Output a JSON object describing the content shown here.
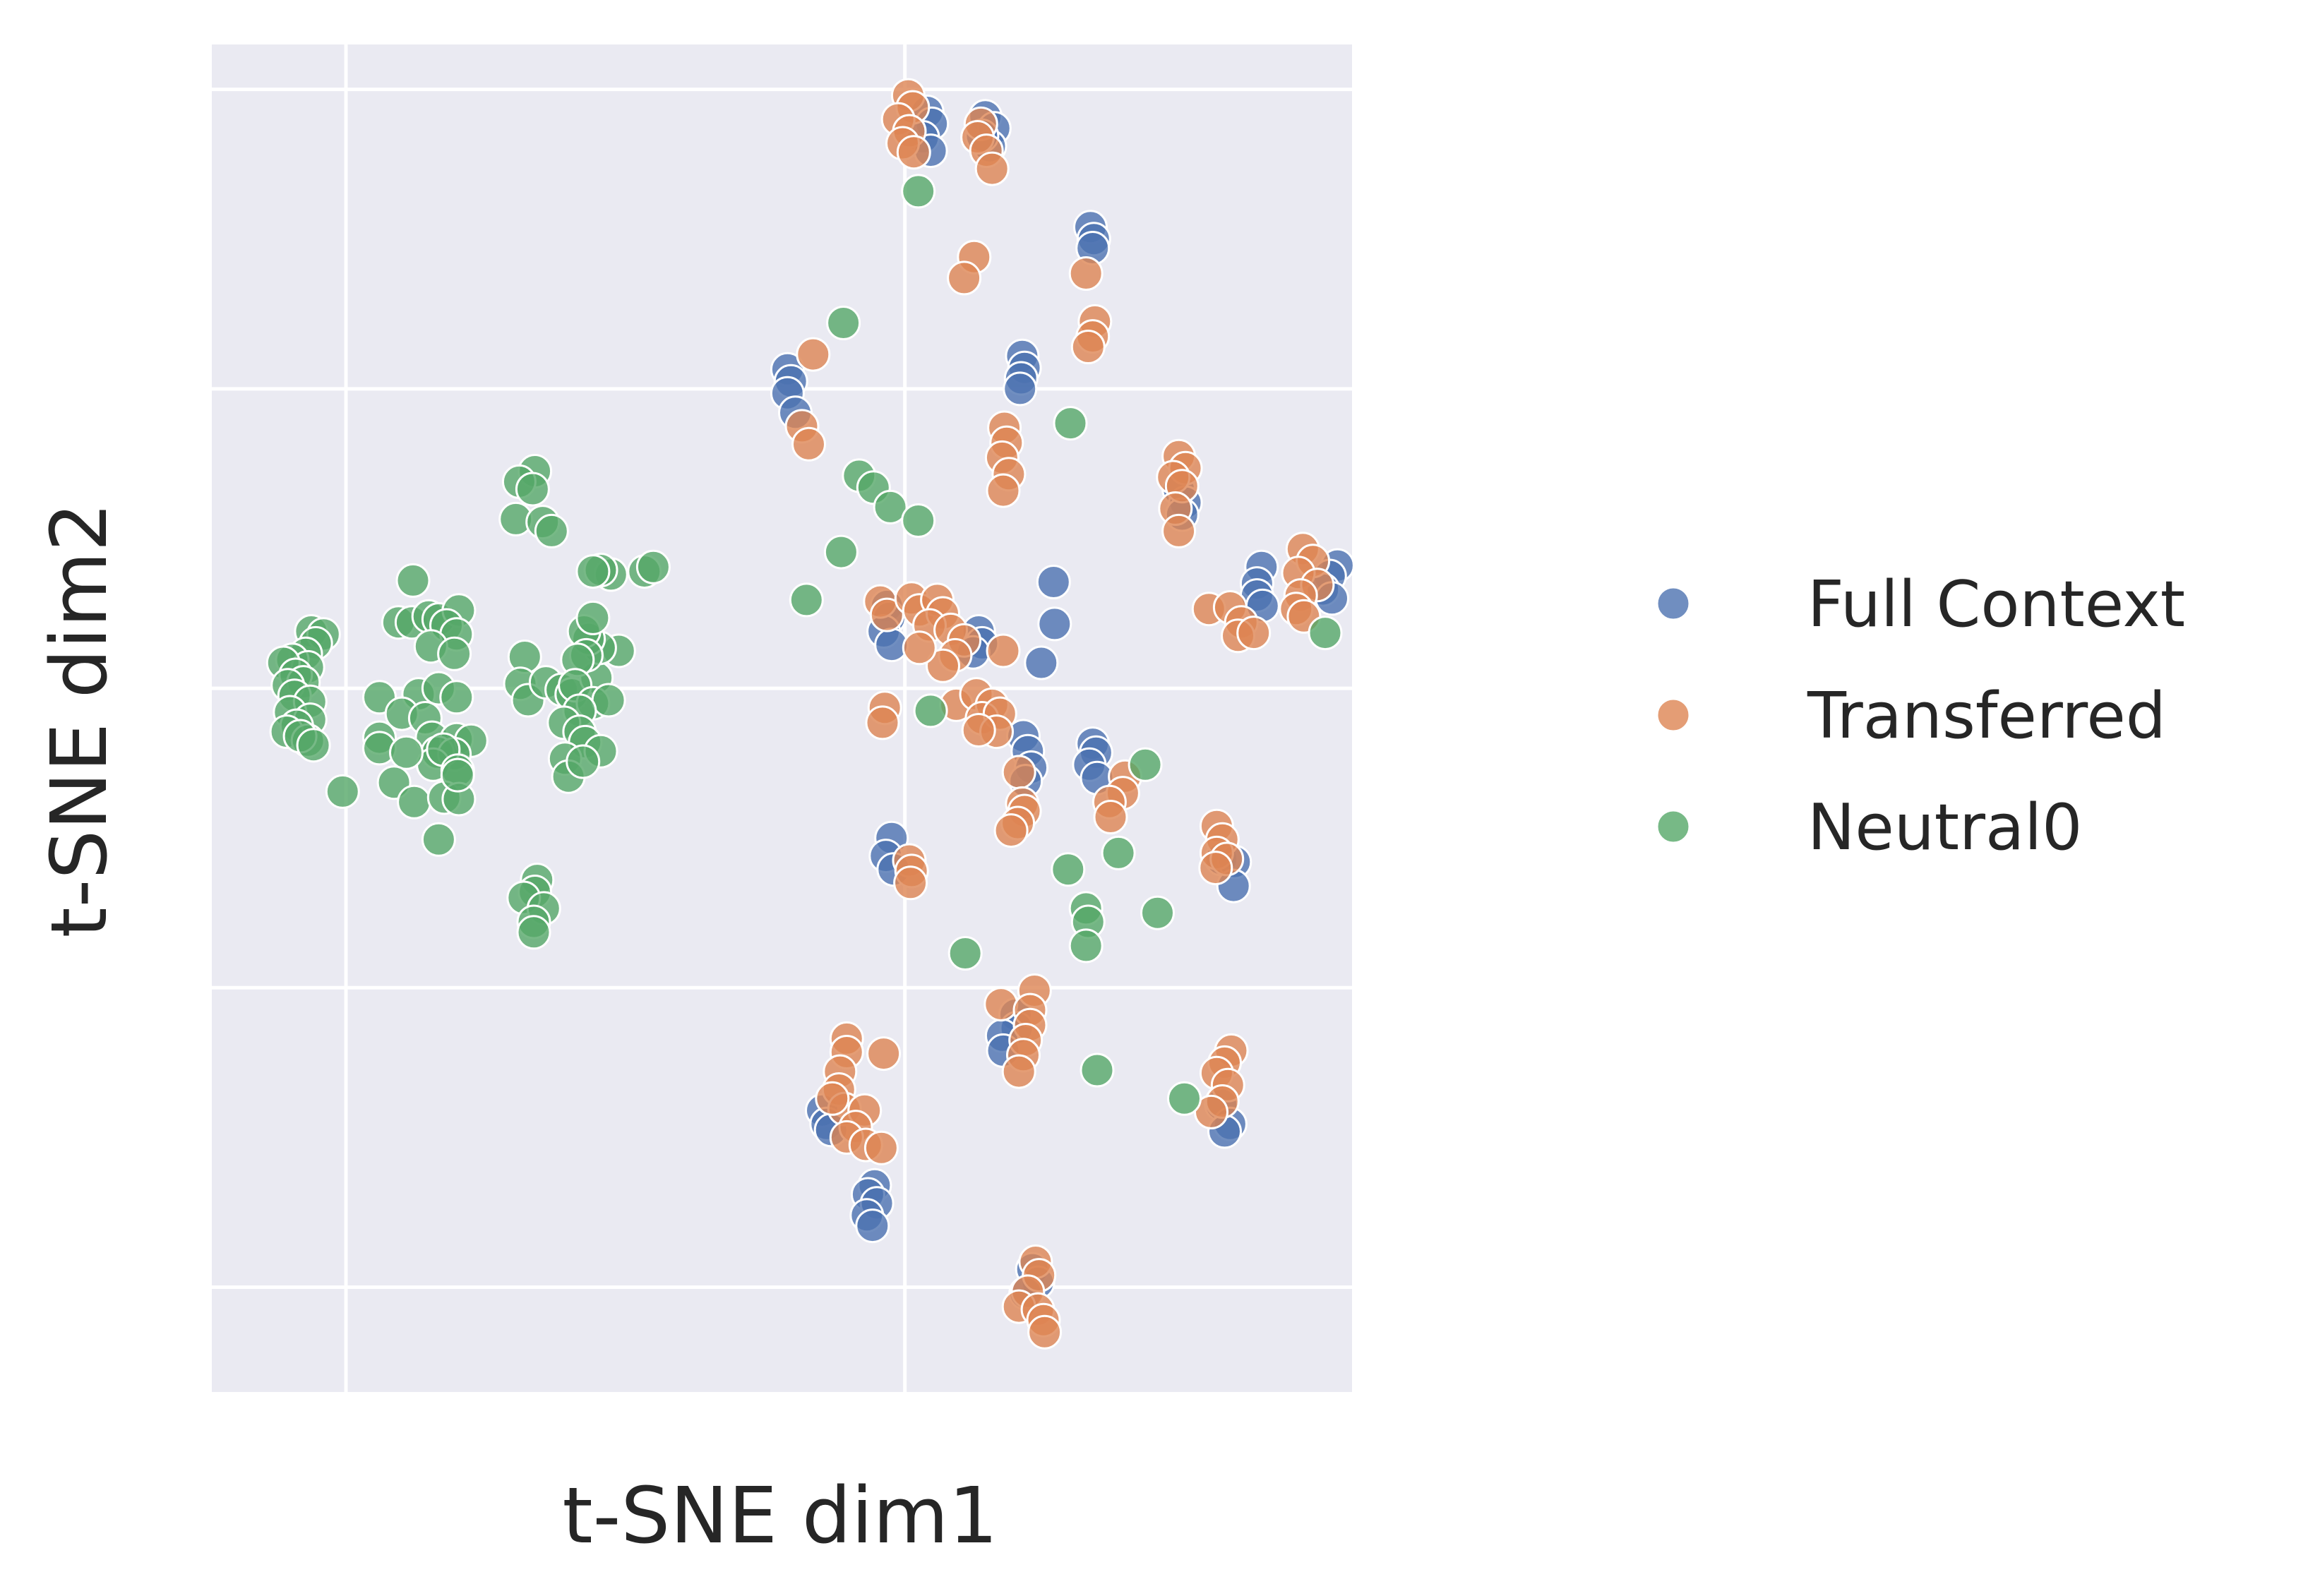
{
  "chart_data": {
    "type": "scatter",
    "title": "",
    "xlabel": "t-SNE dim1",
    "ylabel": "t-SNE dim2",
    "xlim": [
      -62,
      40
    ],
    "ylim": [
      -47,
      43
    ],
    "xticks": [
      -50,
      0
    ],
    "yticks": [
      -40,
      -20,
      0,
      20,
      40
    ],
    "grid": true,
    "legend_position": "right",
    "colors": {
      "Full Context": "#4C72B0",
      "Transferred": "#DD8452",
      "Neutral0": "#55A868"
    },
    "series": [
      {
        "name": "Full Context",
        "points": [
          [
            2,
            38.5
          ],
          [
            2.4,
            37.7
          ],
          [
            1.6,
            36.8
          ],
          [
            2.3,
            35.9
          ],
          [
            7.2,
            38.2
          ],
          [
            8,
            37.4
          ],
          [
            7.6,
            36.2
          ],
          [
            6.9,
            36.9
          ],
          [
            16.6,
            30.8
          ],
          [
            16.9,
            30
          ],
          [
            16.8,
            29.4
          ],
          [
            10.5,
            22.2
          ],
          [
            10.7,
            21.4
          ],
          [
            10.4,
            20.7
          ],
          [
            10.3,
            20
          ],
          [
            -10.5,
            21.3
          ],
          [
            -10.2,
            20.5
          ],
          [
            -10.5,
            19.7
          ],
          [
            -9.8,
            18.4
          ],
          [
            24.5,
            13.3
          ],
          [
            25.1,
            12.4
          ],
          [
            24.8,
            11.6
          ],
          [
            31.9,
            8.1
          ],
          [
            31.5,
            7
          ],
          [
            31.5,
            6.2
          ],
          [
            32,
            5.5
          ],
          [
            38.7,
            8.2
          ],
          [
            38,
            7.5
          ],
          [
            37.4,
            6.6
          ],
          [
            38.2,
            6
          ],
          [
            13.3,
            7.1
          ],
          [
            13.4,
            4.3
          ],
          [
            12.2,
            1.7
          ],
          [
            -1.6,
            5.5
          ],
          [
            -1.4,
            4.7
          ],
          [
            -1.9,
            3.8
          ],
          [
            -1.2,
            2.9
          ],
          [
            6.6,
            3.8
          ],
          [
            6.9,
            3
          ],
          [
            6.1,
            2.4
          ],
          [
            10.6,
            -3.2
          ],
          [
            11,
            -4.2
          ],
          [
            11.3,
            -5.3
          ],
          [
            10.8,
            -6.2
          ],
          [
            16.8,
            -3.7
          ],
          [
            17.1,
            -4.3
          ],
          [
            16.5,
            -5.1
          ],
          [
            17.2,
            -6
          ],
          [
            -1.2,
            -10
          ],
          [
            -1.7,
            -11.2
          ],
          [
            -1,
            -12.1
          ],
          [
            28.3,
            -11.4
          ],
          [
            29.5,
            -11.6
          ],
          [
            29.4,
            -13.2
          ],
          [
            9.9,
            -21.8
          ],
          [
            10,
            -22.7
          ],
          [
            8.7,
            -23.2
          ],
          [
            8.8,
            -24.2
          ],
          [
            -7.4,
            -28.2
          ],
          [
            -7,
            -29.1
          ],
          [
            -6.6,
            -29.5
          ],
          [
            -2.7,
            -33.2
          ],
          [
            -3.3,
            -33.8
          ],
          [
            -2.5,
            -34.4
          ],
          [
            -3.4,
            -35.2
          ],
          [
            -2.9,
            -35.9
          ],
          [
            28.3,
            -27.8
          ],
          [
            29.1,
            -29.1
          ],
          [
            28.6,
            -29.6
          ],
          [
            11.4,
            -38.8
          ],
          [
            11.9,
            -39.7
          ],
          [
            10.8,
            -40.4
          ]
        ]
      },
      {
        "name": "Transferred",
        "points": [
          [
            0.3,
            39.6
          ],
          [
            0.7,
            38.8
          ],
          [
            -0.6,
            38
          ],
          [
            0.4,
            37.2
          ],
          [
            -0.2,
            36.4
          ],
          [
            0.8,
            35.8
          ],
          [
            6.8,
            37.7
          ],
          [
            6.5,
            36.8
          ],
          [
            7.3,
            35.9
          ],
          [
            7.8,
            34.7
          ],
          [
            6.2,
            28.8
          ],
          [
            5.3,
            27.4
          ],
          [
            16.2,
            27.7
          ],
          [
            17,
            24.5
          ],
          [
            16.8,
            23.5
          ],
          [
            16.4,
            22.8
          ],
          [
            -8.2,
            22.3
          ],
          [
            -9.2,
            17.5
          ],
          [
            -8.6,
            16.3
          ],
          [
            8.9,
            17.4
          ],
          [
            9.1,
            16.4
          ],
          [
            8.7,
            15.4
          ],
          [
            9.3,
            14.3
          ],
          [
            8.8,
            13.2
          ],
          [
            24.5,
            15.5
          ],
          [
            25.1,
            14.7
          ],
          [
            24,
            14.1
          ],
          [
            24.8,
            13.5
          ],
          [
            24.2,
            12
          ],
          [
            24.5,
            10.5
          ],
          [
            35.6,
            9.3
          ],
          [
            36.5,
            8.5
          ],
          [
            35.2,
            7.7
          ],
          [
            36.9,
            6.9
          ],
          [
            35.4,
            6.2
          ],
          [
            35,
            5.3
          ],
          [
            27.2,
            5.3
          ],
          [
            29.1,
            5.4
          ],
          [
            30.1,
            4.4
          ],
          [
            29.8,
            3.5
          ],
          [
            31.2,
            3.7
          ],
          [
            35.7,
            4.8
          ],
          [
            -2.2,
            5.8
          ],
          [
            -1.6,
            4.9
          ],
          [
            0.6,
            6
          ],
          [
            1.3,
            5.2
          ],
          [
            2.9,
            5.9
          ],
          [
            3.4,
            5
          ],
          [
            2.2,
            4.2
          ],
          [
            4.1,
            3.9
          ],
          [
            5.3,
            3.2
          ],
          [
            4.5,
            2.2
          ],
          [
            3.4,
            1.5
          ],
          [
            1.3,
            2.7
          ],
          [
            8.8,
            2.5
          ],
          [
            -1.8,
            -1.3
          ],
          [
            -2,
            -2.3
          ],
          [
            4.6,
            -1.1
          ],
          [
            6.4,
            -0.4
          ],
          [
            7.8,
            -1.1
          ],
          [
            6.9,
            -2
          ],
          [
            8.5,
            -1.7
          ],
          [
            8.2,
            -2.9
          ],
          [
            6.6,
            -2.8
          ],
          [
            10.2,
            -5.6
          ],
          [
            10.5,
            -7.7
          ],
          [
            10.7,
            -8.2
          ],
          [
            10.1,
            -9
          ],
          [
            9.5,
            -9.5
          ],
          [
            19.7,
            -5.9
          ],
          [
            19.5,
            -7
          ],
          [
            18.3,
            -7.6
          ],
          [
            18.4,
            -8.6
          ],
          [
            27.9,
            -9.2
          ],
          [
            28.4,
            -10.1
          ],
          [
            27.9,
            -11
          ],
          [
            28.8,
            -11.4
          ],
          [
            27.8,
            -12
          ],
          [
            0.4,
            -11.5
          ],
          [
            0.6,
            -12.2
          ],
          [
            0.5,
            -13
          ],
          [
            -5.2,
            -23.4
          ],
          [
            -5.2,
            -24.3
          ],
          [
            -1.9,
            -24.4
          ],
          [
            -5.8,
            -25.6
          ],
          [
            -5.9,
            -26.8
          ],
          [
            -5.4,
            -28.1
          ],
          [
            -6.5,
            -27.4
          ],
          [
            -3.6,
            -28.2
          ],
          [
            -4.4,
            -29.3
          ],
          [
            -5.2,
            -30
          ],
          [
            -3.5,
            -30.5
          ],
          [
            -2.1,
            -30.7
          ],
          [
            8.6,
            -21.1
          ],
          [
            11.6,
            -20.2
          ],
          [
            11.2,
            -21.5
          ],
          [
            11.2,
            -22.5
          ],
          [
            10.8,
            -23.5
          ],
          [
            10.6,
            -24.5
          ],
          [
            10.2,
            -25.6
          ],
          [
            29.2,
            -24.2
          ],
          [
            28.6,
            -25
          ],
          [
            27.9,
            -25.7
          ],
          [
            28.9,
            -26.5
          ],
          [
            28.4,
            -27.6
          ],
          [
            27.4,
            -28.3
          ],
          [
            11.7,
            -38.3
          ],
          [
            12,
            -39.2
          ],
          [
            11,
            -40.3
          ],
          [
            10.2,
            -41.3
          ],
          [
            11.9,
            -41.5
          ],
          [
            12.4,
            -42.2
          ],
          [
            12.5,
            -43
          ]
        ]
      },
      {
        "name": "Neutral0",
        "points": [
          [
            -53.1,
            3.8
          ],
          [
            -52,
            3.6
          ],
          [
            -52.7,
            3
          ],
          [
            -53.6,
            2.3
          ],
          [
            -54.8,
            1.9
          ],
          [
            -53.4,
            1.4
          ],
          [
            -55.6,
            1.7
          ],
          [
            -54.5,
            0.9
          ],
          [
            -53.8,
            0.4
          ],
          [
            -55.2,
            0.2
          ],
          [
            -54.6,
            -0.5
          ],
          [
            -53.2,
            -0.9
          ],
          [
            -55,
            -1.6
          ],
          [
            -53.2,
            -2.1
          ],
          [
            -54.4,
            -2.5
          ],
          [
            -55.3,
            -2.9
          ],
          [
            -53.4,
            -3.5
          ],
          [
            -54.1,
            -3.2
          ],
          [
            -52.9,
            -3.8
          ],
          [
            -50.3,
            -6.9
          ],
          [
            -44,
            7.2
          ],
          [
            -45.3,
            4.4
          ],
          [
            -44.1,
            4.4
          ],
          [
            -42.6,
            4.8
          ],
          [
            -41.7,
            4.6
          ],
          [
            -39.9,
            5.2
          ],
          [
            -41,
            4.2
          ],
          [
            -40.1,
            3.6
          ],
          [
            -42.4,
            2.8
          ],
          [
            -40.3,
            2.3
          ],
          [
            -47,
            -0.6
          ],
          [
            -43.5,
            -0.4
          ],
          [
            -41.7,
            0
          ],
          [
            -40.1,
            -0.6
          ],
          [
            -45,
            -1.7
          ],
          [
            -42.9,
            -2
          ],
          [
            -42.3,
            -3.3
          ],
          [
            -40.1,
            -3.4
          ],
          [
            -38.8,
            -3.5
          ],
          [
            -41.8,
            -4.3
          ],
          [
            -40.3,
            -4.4
          ],
          [
            -42.2,
            -5.1
          ],
          [
            -47,
            -3.3
          ],
          [
            -47,
            -4
          ],
          [
            -44.6,
            -4.3
          ],
          [
            -41.3,
            -4.1
          ],
          [
            -40,
            -5.5
          ],
          [
            -45.7,
            -6.3
          ],
          [
            -43.9,
            -7.6
          ],
          [
            -41.2,
            -7.3
          ],
          [
            -39.9,
            -7.4
          ],
          [
            -40,
            -5.8
          ],
          [
            -41.7,
            -10.1
          ],
          [
            -33.1,
            14.5
          ],
          [
            -34.5,
            13.8
          ],
          [
            -33.3,
            13.3
          ],
          [
            -34.8,
            11.3
          ],
          [
            -32.4,
            11.1
          ],
          [
            -31.6,
            10.5
          ],
          [
            -26.3,
            7.6
          ],
          [
            -27.2,
            7.9
          ],
          [
            -27.9,
            7.8
          ],
          [
            -34,
            2.1
          ],
          [
            -34.4,
            0.3
          ],
          [
            -33.7,
            -0.8
          ],
          [
            -32.1,
            0.4
          ],
          [
            -30.7,
            -0.1
          ],
          [
            -29.8,
            -0.4
          ],
          [
            -27.6,
            0.7
          ],
          [
            -25.6,
            2.5
          ],
          [
            -27.3,
            2.7
          ],
          [
            -28.3,
            3.3
          ],
          [
            -28.7,
            3.8
          ],
          [
            -28.5,
            2.2
          ],
          [
            -27.9,
            4.7
          ],
          [
            -29.3,
            1.9
          ],
          [
            -29.5,
            0.2
          ],
          [
            -27.9,
            -1
          ],
          [
            -26.5,
            -0.8
          ],
          [
            -29.1,
            -1.5
          ],
          [
            -30.5,
            -2.3
          ],
          [
            -29.1,
            -2.9
          ],
          [
            -28.6,
            -3.6
          ],
          [
            -27.2,
            -4.2
          ],
          [
            -30.4,
            -4.7
          ],
          [
            -30.1,
            -5.9
          ],
          [
            -28.8,
            -4.9
          ],
          [
            -32.9,
            -12.8
          ],
          [
            -33.1,
            -13.6
          ],
          [
            -34.1,
            -14
          ],
          [
            -32.3,
            -14.7
          ],
          [
            -33.2,
            -15.6
          ],
          [
            -33.2,
            -16.3
          ],
          [
            -23.3,
            7.8
          ],
          [
            -22.5,
            8.1
          ],
          [
            -4.1,
            14.2
          ],
          [
            -2.8,
            13.4
          ],
          [
            -1.3,
            12.1
          ],
          [
            1.2,
            11.2
          ],
          [
            -5.7,
            9.1
          ],
          [
            -8.8,
            5.9
          ],
          [
            1.2,
            33.2
          ],
          [
            14.8,
            17.7
          ],
          [
            -5.5,
            24.4
          ],
          [
            2.3,
            -1.5
          ],
          [
            14.6,
            -12.1
          ],
          [
            16.2,
            -14.7
          ],
          [
            16.4,
            -15.6
          ],
          [
            16.2,
            -17.2
          ],
          [
            19.1,
            -11
          ],
          [
            21.5,
            -5.1
          ],
          [
            22.6,
            -15
          ],
          [
            5.4,
            -17.7
          ],
          [
            17.2,
            -25.5
          ],
          [
            25,
            -27.4
          ],
          [
            37.6,
            3.7
          ]
        ]
      }
    ]
  }
}
